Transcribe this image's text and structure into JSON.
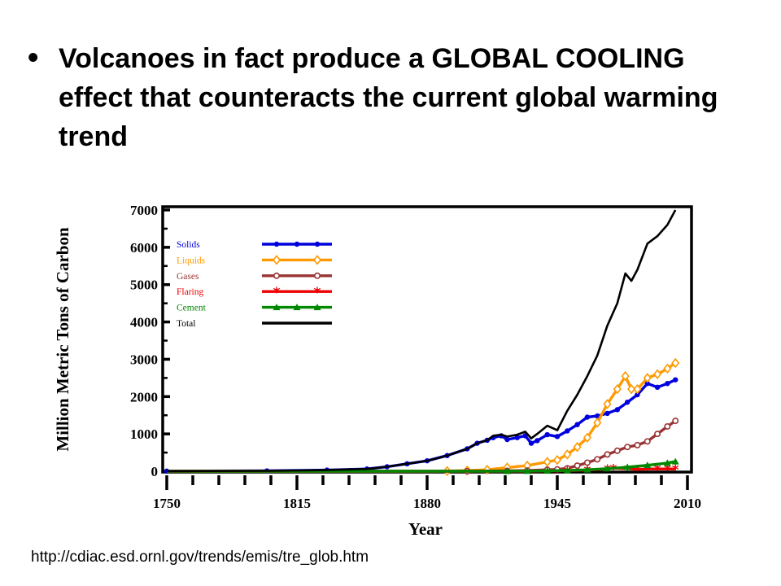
{
  "slide": {
    "bullet": "Volcanoes in fact produce a GLOBAL COOLING effect that counteracts the current global warming trend",
    "source_url": "http://cdiac.esd.ornl.gov/trends/emis/tre_glob.htm"
  },
  "chart_data": {
    "type": "line",
    "title": "",
    "xlabel": "Year",
    "ylabel": "Million Metric Tons of Carbon",
    "xlim": [
      1750,
      2010
    ],
    "ylim": [
      0,
      7000
    ],
    "x_ticks": [
      1750,
      1815,
      1880,
      1945,
      2010
    ],
    "y_ticks": [
      0,
      1000,
      2000,
      3000,
      4000,
      5000,
      6000,
      7000
    ],
    "grid": false,
    "legend_position": "top-left",
    "series": [
      {
        "name": "Solids",
        "color": "#0000dd",
        "marker": "circle",
        "x": [
          1750,
          1800,
          1830,
          1850,
          1860,
          1870,
          1880,
          1890,
          1900,
          1905,
          1910,
          1913,
          1917,
          1920,
          1925,
          1929,
          1932,
          1935,
          1940,
          1945,
          1950,
          1955,
          1960,
          1965,
          1970,
          1975,
          1980,
          1985,
          1990,
          1995,
          2000,
          2004
        ],
        "y": [
          3,
          10,
          30,
          60,
          120,
          200,
          280,
          420,
          600,
          750,
          830,
          900,
          950,
          850,
          900,
          950,
          750,
          820,
          980,
          930,
          1080,
          1250,
          1450,
          1480,
          1550,
          1650,
          1850,
          2050,
          2350,
          2250,
          2350,
          2450
        ]
      },
      {
        "name": "Liquids",
        "color": "#ff9900",
        "marker": "diamond",
        "x": [
          1750,
          1870,
          1890,
          1900,
          1910,
          1920,
          1930,
          1940,
          1945,
          1950,
          1955,
          1960,
          1965,
          1970,
          1975,
          1979,
          1982,
          1985,
          1990,
          1995,
          2000,
          2004
        ],
        "y": [
          0,
          0,
          5,
          20,
          40,
          100,
          150,
          250,
          300,
          450,
          650,
          900,
          1300,
          1800,
          2200,
          2550,
          2200,
          2200,
          2500,
          2600,
          2750,
          2900
        ]
      },
      {
        "name": "Gases",
        "color": "#993333",
        "marker": "circle-open",
        "x": [
          1750,
          1880,
          1900,
          1920,
          1930,
          1940,
          1945,
          1950,
          1955,
          1960,
          1965,
          1970,
          1975,
          1980,
          1985,
          1990,
          1995,
          2000,
          2004
        ],
        "y": [
          0,
          0,
          2,
          10,
          20,
          40,
          50,
          80,
          150,
          230,
          320,
          450,
          550,
          650,
          700,
          800,
          1000,
          1200,
          1350
        ]
      },
      {
        "name": "Flaring",
        "color": "#ee0000",
        "marker": "star",
        "x": [
          1750,
          1900,
          1930,
          1950,
          1960,
          1970,
          1973,
          1980,
          1985,
          1990,
          1995,
          2000,
          2004
        ],
        "y": [
          0,
          0,
          0,
          15,
          30,
          60,
          80,
          70,
          50,
          60,
          60,
          60,
          60
        ]
      },
      {
        "name": "Cement",
        "color": "#008800",
        "marker": "triangle",
        "x": [
          1750,
          1900,
          1920,
          1930,
          1940,
          1950,
          1960,
          1970,
          1980,
          1990,
          2000,
          2004
        ],
        "y": [
          0,
          0,
          2,
          5,
          10,
          20,
          40,
          70,
          110,
          160,
          220,
          260
        ]
      },
      {
        "name": "Total",
        "color": "#000000",
        "marker": "none",
        "x": [
          1750,
          1800,
          1830,
          1850,
          1860,
          1870,
          1880,
          1890,
          1900,
          1905,
          1910,
          1913,
          1917,
          1920,
          1925,
          1929,
          1932,
          1935,
          1940,
          1945,
          1950,
          1955,
          1960,
          1965,
          1970,
          1975,
          1979,
          1982,
          1985,
          1990,
          1995,
          2000,
          2004
        ],
        "y": [
          3,
          10,
          30,
          60,
          120,
          200,
          280,
          420,
          600,
          750,
          830,
          950,
          980,
          930,
          980,
          1060,
          880,
          1000,
          1220,
          1100,
          1620,
          2050,
          2550,
          3100,
          3900,
          4500,
          5300,
          5100,
          5400,
          6100,
          6300,
          6600,
          7000
        ]
      }
    ]
  }
}
